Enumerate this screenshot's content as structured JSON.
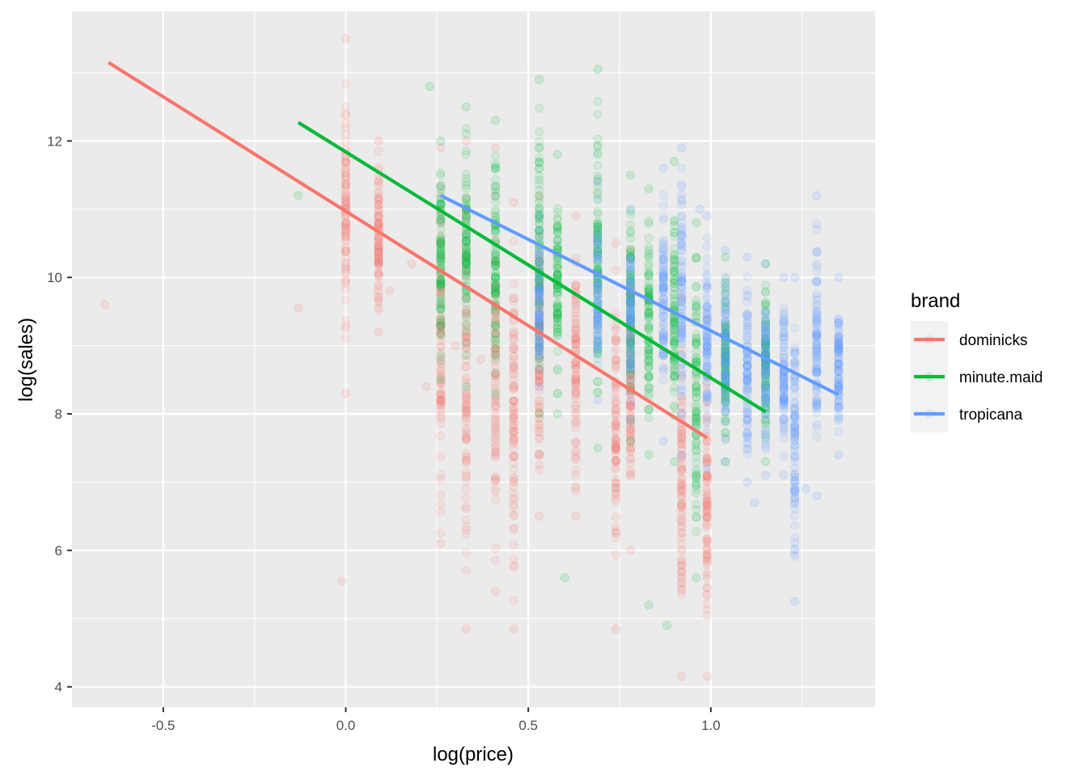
{
  "chart_data": {
    "type": "scatter",
    "title": "",
    "xlabel": "log(price)",
    "ylabel": "log(sales)",
    "xlim": [
      -0.75,
      1.45
    ],
    "ylim": [
      3.7,
      13.9
    ],
    "x_ticks": [
      -0.5,
      0.0,
      0.5,
      1.0
    ],
    "x_tick_labels": [
      "-0.5",
      "0.0",
      "0.5",
      "1.0"
    ],
    "y_ticks": [
      4,
      6,
      8,
      10,
      12
    ],
    "y_tick_labels": [
      "4",
      "6",
      "8",
      "10",
      "12"
    ],
    "grid": true,
    "legend": {
      "title": "brand",
      "position": "right"
    },
    "series": [
      {
        "name": "dominicks",
        "color": "#F8766D",
        "fit_line": {
          "x": [
            -0.65,
            0.99
          ],
          "y": [
            13.15,
            7.65
          ]
        },
        "point_columns": [
          {
            "x": 0.0,
            "y_min": 8.3,
            "y_max": 13.5
          },
          {
            "x": 0.09,
            "y_min": 9.2,
            "y_max": 12.0
          },
          {
            "x": 0.26,
            "y_min": 6.1,
            "y_max": 11.9
          },
          {
            "x": 0.33,
            "y_min": 4.85,
            "y_max": 12.0
          },
          {
            "x": 0.41,
            "y_min": 5.4,
            "y_max": 11.9
          },
          {
            "x": 0.46,
            "y_min": 4.85,
            "y_max": 11.1
          },
          {
            "x": 0.53,
            "y_min": 6.5,
            "y_max": 11.2
          },
          {
            "x": 0.63,
            "y_min": 6.5,
            "y_max": 10.9
          },
          {
            "x": 0.74,
            "y_min": 4.85,
            "y_max": 10.5
          },
          {
            "x": 0.78,
            "y_min": 6.0,
            "y_max": 10.4
          },
          {
            "x": 0.92,
            "y_min": 4.15,
            "y_max": 9.7
          },
          {
            "x": 0.99,
            "y_min": 4.15,
            "y_max": 9.4
          }
        ],
        "scattered_points": [
          {
            "x": -0.66,
            "y": 9.6
          },
          {
            "x": -0.13,
            "y": 9.55
          },
          {
            "x": -0.01,
            "y": 5.55
          },
          {
            "x": 0.12,
            "y": 9.8
          },
          {
            "x": 0.18,
            "y": 10.2
          },
          {
            "x": 0.22,
            "y": 8.4
          },
          {
            "x": 0.3,
            "y": 9.0
          },
          {
            "x": 0.37,
            "y": 8.8
          }
        ]
      },
      {
        "name": "minute.maid",
        "color": "#00BA38",
        "fit_line": {
          "x": [
            -0.13,
            1.15
          ],
          "y": [
            12.27,
            8.03
          ]
        },
        "point_columns": [
          {
            "x": 0.26,
            "y_min": 8.5,
            "y_max": 12.0
          },
          {
            "x": 0.33,
            "y_min": 8.4,
            "y_max": 12.5
          },
          {
            "x": 0.41,
            "y_min": 8.3,
            "y_max": 12.3
          },
          {
            "x": 0.53,
            "y_min": 8.0,
            "y_max": 12.9
          },
          {
            "x": 0.58,
            "y_min": 8.0,
            "y_max": 11.8
          },
          {
            "x": 0.69,
            "y_min": 7.5,
            "y_max": 13.05
          },
          {
            "x": 0.78,
            "y_min": 7.6,
            "y_max": 11.5
          },
          {
            "x": 0.83,
            "y_min": 7.4,
            "y_max": 11.3
          },
          {
            "x": 0.9,
            "y_min": 7.3,
            "y_max": 11.7
          },
          {
            "x": 0.96,
            "y_min": 5.6,
            "y_max": 10.8
          },
          {
            "x": 1.04,
            "y_min": 7.3,
            "y_max": 10.3
          },
          {
            "x": 1.15,
            "y_min": 7.3,
            "y_max": 10.2
          }
        ],
        "scattered_points": [
          {
            "x": -0.13,
            "y": 11.2
          },
          {
            "x": 0.23,
            "y": 12.8
          },
          {
            "x": 0.6,
            "y": 5.6
          },
          {
            "x": 0.83,
            "y": 5.2
          },
          {
            "x": 0.88,
            "y": 4.9
          }
        ]
      },
      {
        "name": "tropicana",
        "color": "#619CFF",
        "fit_line": {
          "x": [
            0.26,
            1.35
          ],
          "y": [
            11.2,
            8.28
          ]
        },
        "point_columns": [
          {
            "x": 0.53,
            "y_min": 8.4,
            "y_max": 10.9
          },
          {
            "x": 0.69,
            "y_min": 8.2,
            "y_max": 11.4
          },
          {
            "x": 0.78,
            "y_min": 7.9,
            "y_max": 11.0
          },
          {
            "x": 0.87,
            "y_min": 7.6,
            "y_max": 11.6
          },
          {
            "x": 0.92,
            "y_min": 7.4,
            "y_max": 11.9
          },
          {
            "x": 0.99,
            "y_min": 7.2,
            "y_max": 10.9
          },
          {
            "x": 1.04,
            "y_min": 7.3,
            "y_max": 10.4
          },
          {
            "x": 1.1,
            "y_min": 7.0,
            "y_max": 10.3
          },
          {
            "x": 1.15,
            "y_min": 7.1,
            "y_max": 10.2
          },
          {
            "x": 1.2,
            "y_min": 7.1,
            "y_max": 10.0
          },
          {
            "x": 1.23,
            "y_min": 5.25,
            "y_max": 10.0
          },
          {
            "x": 1.29,
            "y_min": 6.8,
            "y_max": 11.2
          },
          {
            "x": 1.35,
            "y_min": 7.4,
            "y_max": 10.0
          }
        ],
        "scattered_points": [
          {
            "x": 1.12,
            "y": 6.7
          },
          {
            "x": 1.26,
            "y": 6.9
          },
          {
            "x": 0.97,
            "y": 11.0
          }
        ]
      }
    ]
  }
}
